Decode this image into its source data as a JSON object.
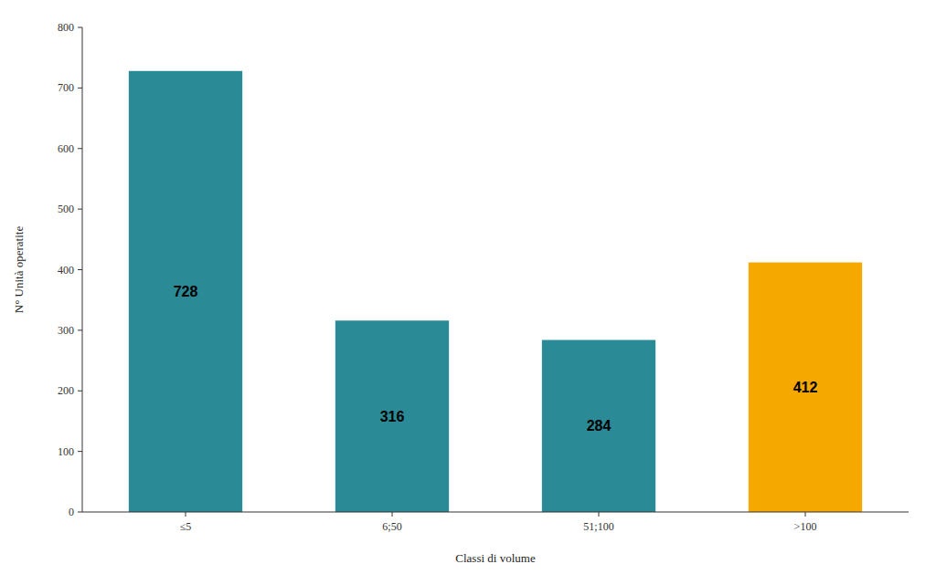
{
  "chart_data": {
    "type": "bar",
    "categories": [
      "≤5",
      "6;50",
      "51;100",
      ">100"
    ],
    "values": [
      728,
      316,
      284,
      412
    ],
    "colors": [
      "#2a8a96",
      "#2a8a96",
      "#2a8a96",
      "#f5a800"
    ],
    "xlabel": "Classi di volume",
    "ylabel": "N° Unità operatite",
    "ylim": [
      0,
      800
    ],
    "yticks": [
      0,
      100,
      200,
      300,
      400,
      500,
      600,
      700,
      800
    ],
    "grid": false,
    "data_labels": true
  }
}
